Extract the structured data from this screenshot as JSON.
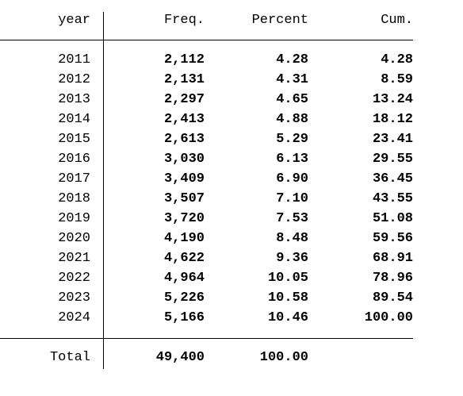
{
  "table": {
    "header": [
      "year",
      "Freq.",
      "Percent",
      "Cum."
    ],
    "rows": [
      [
        "2011",
        "2,112",
        "4.28",
        "4.28"
      ],
      [
        "2012",
        "2,131",
        "4.31",
        "8.59"
      ],
      [
        "2013",
        "2,297",
        "4.65",
        "13.24"
      ],
      [
        "2014",
        "2,413",
        "4.88",
        "18.12"
      ],
      [
        "2015",
        "2,613",
        "5.29",
        "23.41"
      ],
      [
        "2016",
        "3,030",
        "6.13",
        "29.55"
      ],
      [
        "2017",
        "3,409",
        "6.90",
        "36.45"
      ],
      [
        "2018",
        "3,507",
        "7.10",
        "43.55"
      ],
      [
        "2019",
        "3,720",
        "7.53",
        "51.08"
      ],
      [
        "2020",
        "4,190",
        "8.48",
        "59.56"
      ],
      [
        "2021",
        "4,622",
        "9.36",
        "68.91"
      ],
      [
        "2022",
        "4,964",
        "10.05",
        "78.96"
      ],
      [
        "2023",
        "5,226",
        "10.58",
        "89.54"
      ],
      [
        "2024",
        "5,166",
        "10.46",
        "100.00"
      ]
    ],
    "total": [
      "Total",
      "49,400",
      "100.00"
    ]
  }
}
